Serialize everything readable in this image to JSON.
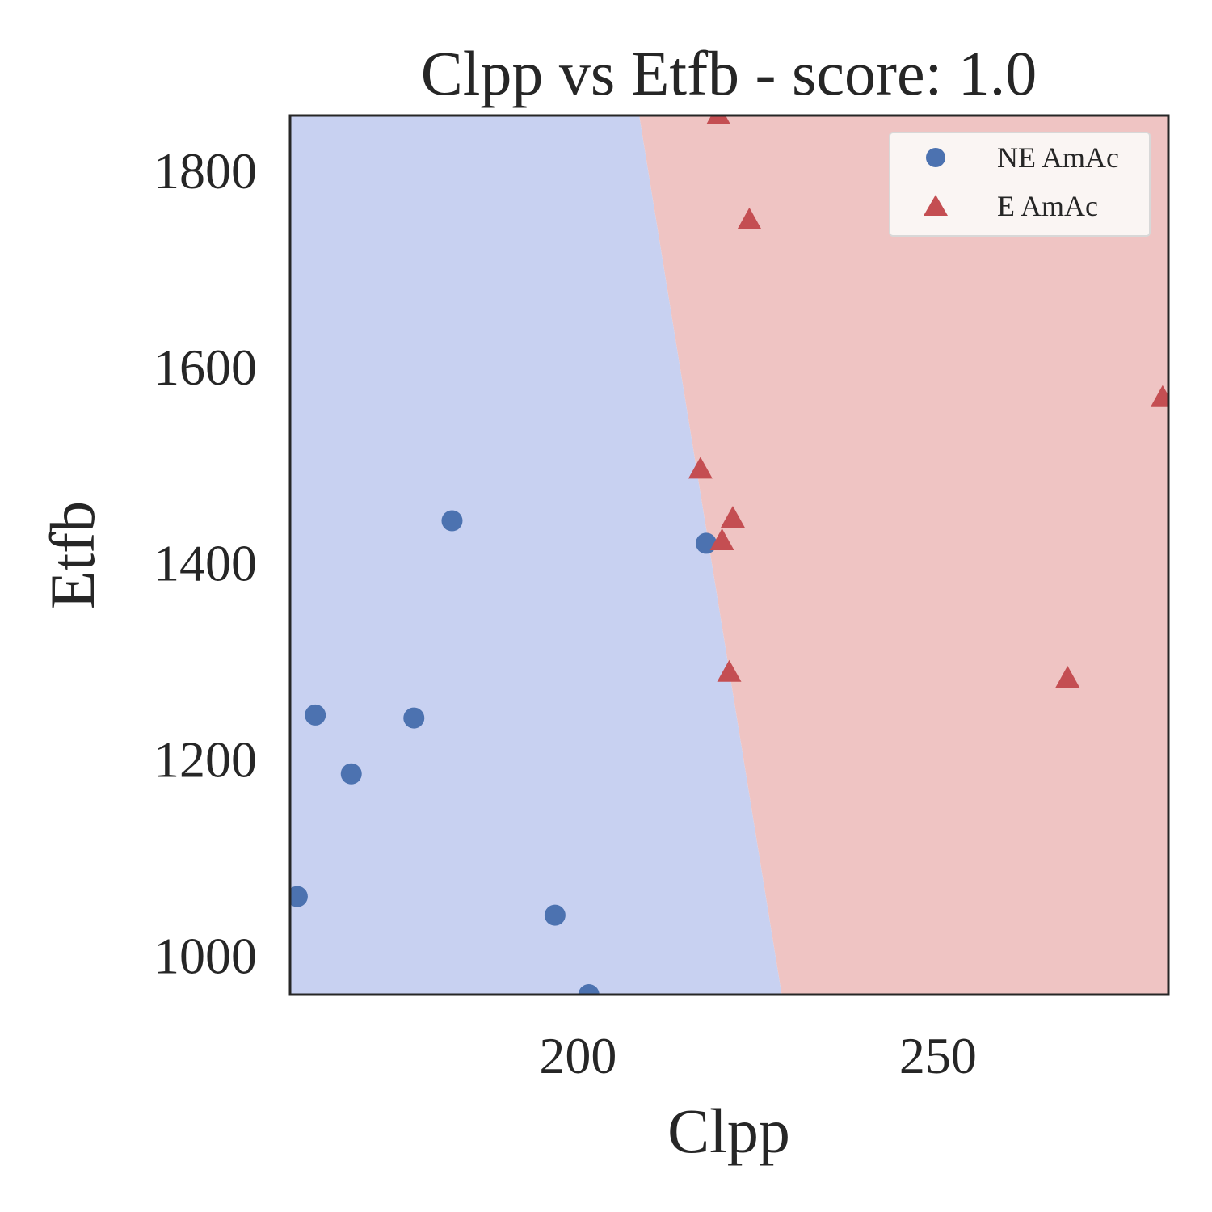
{
  "chart_data": {
    "type": "scatter",
    "title": "Clpp vs Etfb - score: 1.0",
    "xlabel": "Clpp",
    "ylabel": "Etfb",
    "xlim": [
      160.0,
      282.0
    ],
    "ylim": [
      960.0,
      1856.0
    ],
    "x_ticks": [
      200,
      250
    ],
    "y_ticks": [
      1000,
      1200,
      1400,
      1600,
      1800
    ],
    "grid": false,
    "legend_position": "top-right",
    "regions": {
      "colors": {
        "NE AmAc": "#c8d1f1",
        "E AmAc": "#efc4c3"
      },
      "boundary": [
        {
          "x": 208.5,
          "y": 1856.0
        },
        {
          "x": 228.3,
          "y": 960.0
        }
      ]
    },
    "series": [
      {
        "name": "NE AmAc",
        "marker": "circle",
        "color": "#4c72b0",
        "points": [
          {
            "x": 161.0,
            "y": 1060.0
          },
          {
            "x": 163.5,
            "y": 1245.0
          },
          {
            "x": 168.5,
            "y": 1185.0
          },
          {
            "x": 177.2,
            "y": 1242.0
          },
          {
            "x": 182.5,
            "y": 1443.0
          },
          {
            "x": 196.8,
            "y": 1041.0
          },
          {
            "x": 201.5,
            "y": 960.0
          },
          {
            "x": 217.8,
            "y": 1420.0
          }
        ]
      },
      {
        "name": "E AmAc",
        "marker": "triangle",
        "color": "#c44e52",
        "points": [
          {
            "x": 219.5,
            "y": 1856.0
          },
          {
            "x": 223.8,
            "y": 1749.0
          },
          {
            "x": 281.2,
            "y": 1568.0
          },
          {
            "x": 217.0,
            "y": 1495.0
          },
          {
            "x": 221.5,
            "y": 1445.0
          },
          {
            "x": 220.0,
            "y": 1422.0
          },
          {
            "x": 221.0,
            "y": 1288.0
          },
          {
            "x": 268.0,
            "y": 1282.0
          }
        ]
      }
    ]
  }
}
